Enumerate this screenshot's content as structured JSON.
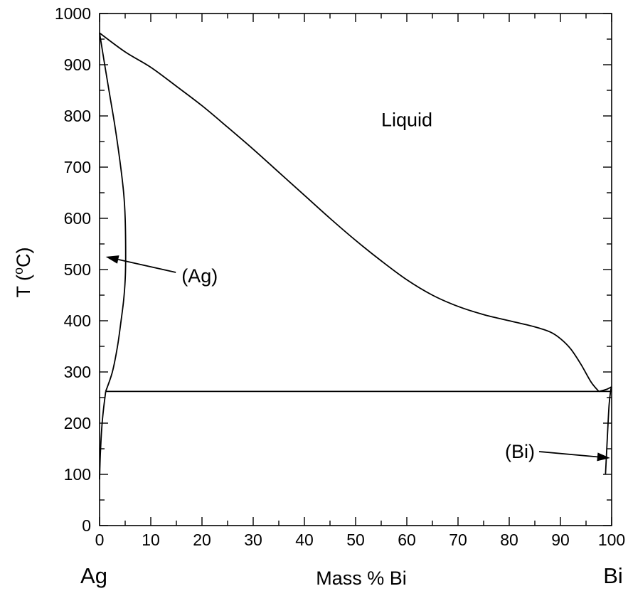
{
  "chart_data": {
    "type": "line",
    "xlabel": "Mass % Bi",
    "ylabel": "T (°C)",
    "ylabel_parts": {
      "prefix": "T (",
      "superscript": "o",
      "suffix": "C)"
    },
    "xlim": [
      0,
      100
    ],
    "ylim": [
      0,
      1000
    ],
    "xticks": [
      0,
      10,
      20,
      30,
      40,
      50,
      60,
      70,
      80,
      90,
      100
    ],
    "yticks": [
      0,
      100,
      200,
      300,
      400,
      500,
      600,
      700,
      800,
      900,
      1000
    ],
    "grid": false,
    "endpoint_labels": {
      "left": "Ag",
      "right": "Bi"
    },
    "annotations": [
      {
        "text": "Liquid",
        "x": 60,
        "y": 780
      },
      {
        "text": "(Ag)",
        "x": 16,
        "y": 475,
        "arrow_to": [
          1.2,
          525
        ]
      },
      {
        "text": "(Bi)",
        "x": 85,
        "y": 132,
        "arrow_to": [
          99.7,
          132
        ]
      }
    ],
    "series": [
      {
        "id": "liquidus-ag",
        "x": [
          0,
          5,
          10,
          15,
          20,
          25,
          30,
          35,
          40,
          45,
          50,
          55,
          60,
          65,
          70,
          75,
          80,
          85,
          88,
          90,
          92,
          94,
          96,
          97.5
        ],
        "y": [
          962,
          925,
          895,
          858,
          820,
          778,
          735,
          690,
          645,
          600,
          557,
          517,
          480,
          450,
          428,
          412,
          400,
          388,
          378,
          365,
          345,
          315,
          280,
          262
        ]
      },
      {
        "id": "liquidus-bi",
        "x": [
          97.5,
          99,
          100
        ],
        "y": [
          262,
          266,
          271
        ]
      },
      {
        "id": "solidus-ag",
        "x": [
          0,
          1,
          2,
          3,
          4,
          4.7,
          5,
          5.1,
          5,
          4.7,
          4.2,
          3.5,
          2.5,
          1.2
        ],
        "y": [
          962,
          900,
          840,
          780,
          710,
          650,
          600,
          525,
          480,
          440,
          400,
          350,
          300,
          262
        ]
      },
      {
        "id": "eutectic",
        "x": [
          1.2,
          100
        ],
        "y": [
          262,
          262
        ]
      },
      {
        "id": "solvus-ag",
        "x": [
          1.2,
          0.8,
          0.5,
          0.3,
          0.15,
          0.05,
          0
        ],
        "y": [
          262,
          230,
          200,
          170,
          140,
          110,
          90
        ]
      },
      {
        "id": "solvus-bi",
        "x": [
          100,
          99.8,
          99.5,
          99.2,
          98.8
        ],
        "y": [
          271,
          263,
          235,
          180,
          100
        ]
      }
    ]
  }
}
